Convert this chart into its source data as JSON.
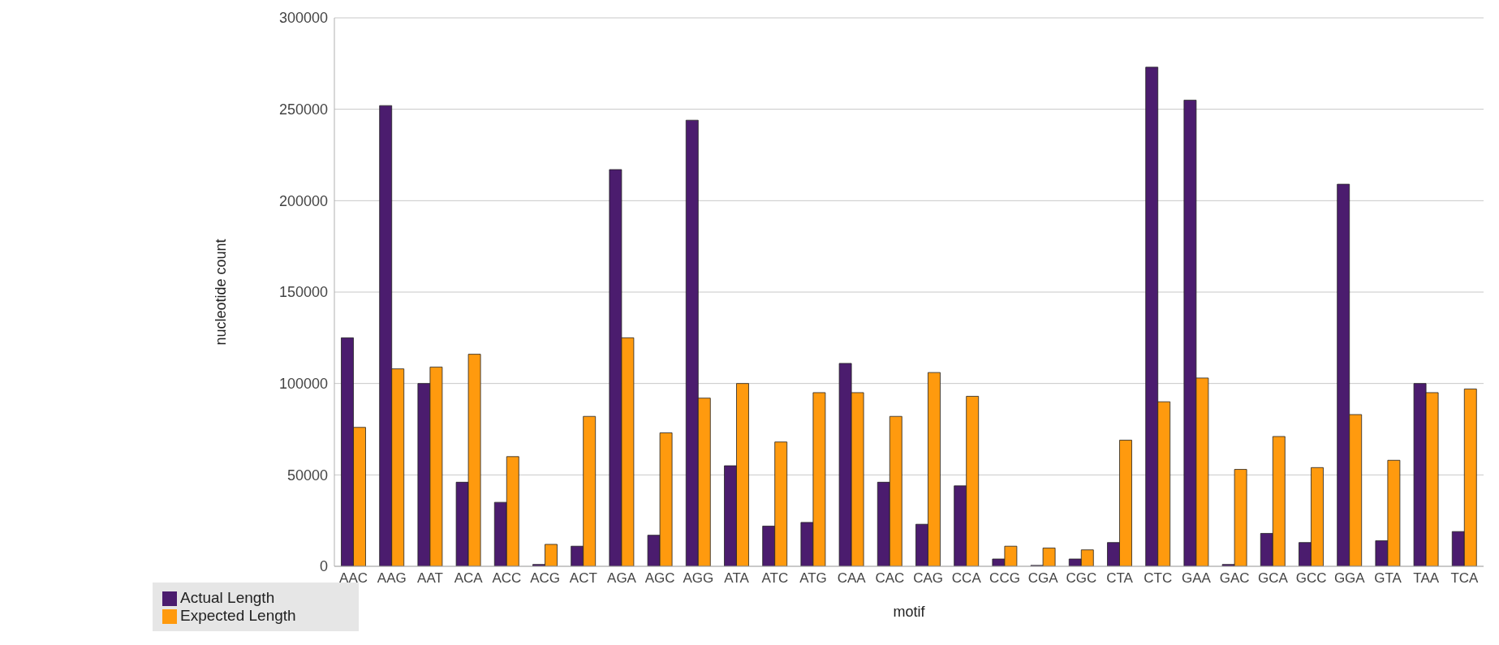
{
  "chart_data": {
    "type": "bar",
    "xlabel": "motif",
    "ylabel": "nucleotide count",
    "categories": [
      "AAC",
      "AAG",
      "AAT",
      "ACA",
      "ACC",
      "ACG",
      "ACT",
      "AGA",
      "AGC",
      "AGG",
      "ATA",
      "ATC",
      "ATG",
      "CAA",
      "CAC",
      "CAG",
      "CCA",
      "CCG",
      "CGA",
      "CGC",
      "CTA",
      "CTC",
      "GAA",
      "GAC",
      "GCA",
      "GCC",
      "GGA",
      "GTA",
      "TAA",
      "TCA"
    ],
    "series": [
      {
        "name": "Actual Length",
        "color": "#4b1c6e",
        "values": [
          125000,
          252000,
          100000,
          46000,
          35000,
          1000,
          11000,
          217000,
          17000,
          244000,
          55000,
          22000,
          24000,
          111000,
          46000,
          23000,
          44000,
          4000,
          500,
          4000,
          13000,
          273000,
          255000,
          1000,
          18000,
          13000,
          209000,
          14000,
          100000,
          19000
        ]
      },
      {
        "name": "Expected Length",
        "color": "#ff9a0e",
        "values": [
          76000,
          108000,
          109000,
          116000,
          60000,
          12000,
          82000,
          125000,
          73000,
          92000,
          100000,
          68000,
          95000,
          95000,
          82000,
          106000,
          93000,
          11000,
          10000,
          9000,
          69000,
          90000,
          103000,
          53000,
          71000,
          54000,
          83000,
          58000,
          95000,
          97000
        ]
      }
    ],
    "ylim": [
      0,
      300000
    ],
    "yticks": [
      0,
      50000,
      100000,
      150000,
      200000,
      250000,
      300000
    ],
    "grid": "y",
    "legend": "bottom left"
  }
}
